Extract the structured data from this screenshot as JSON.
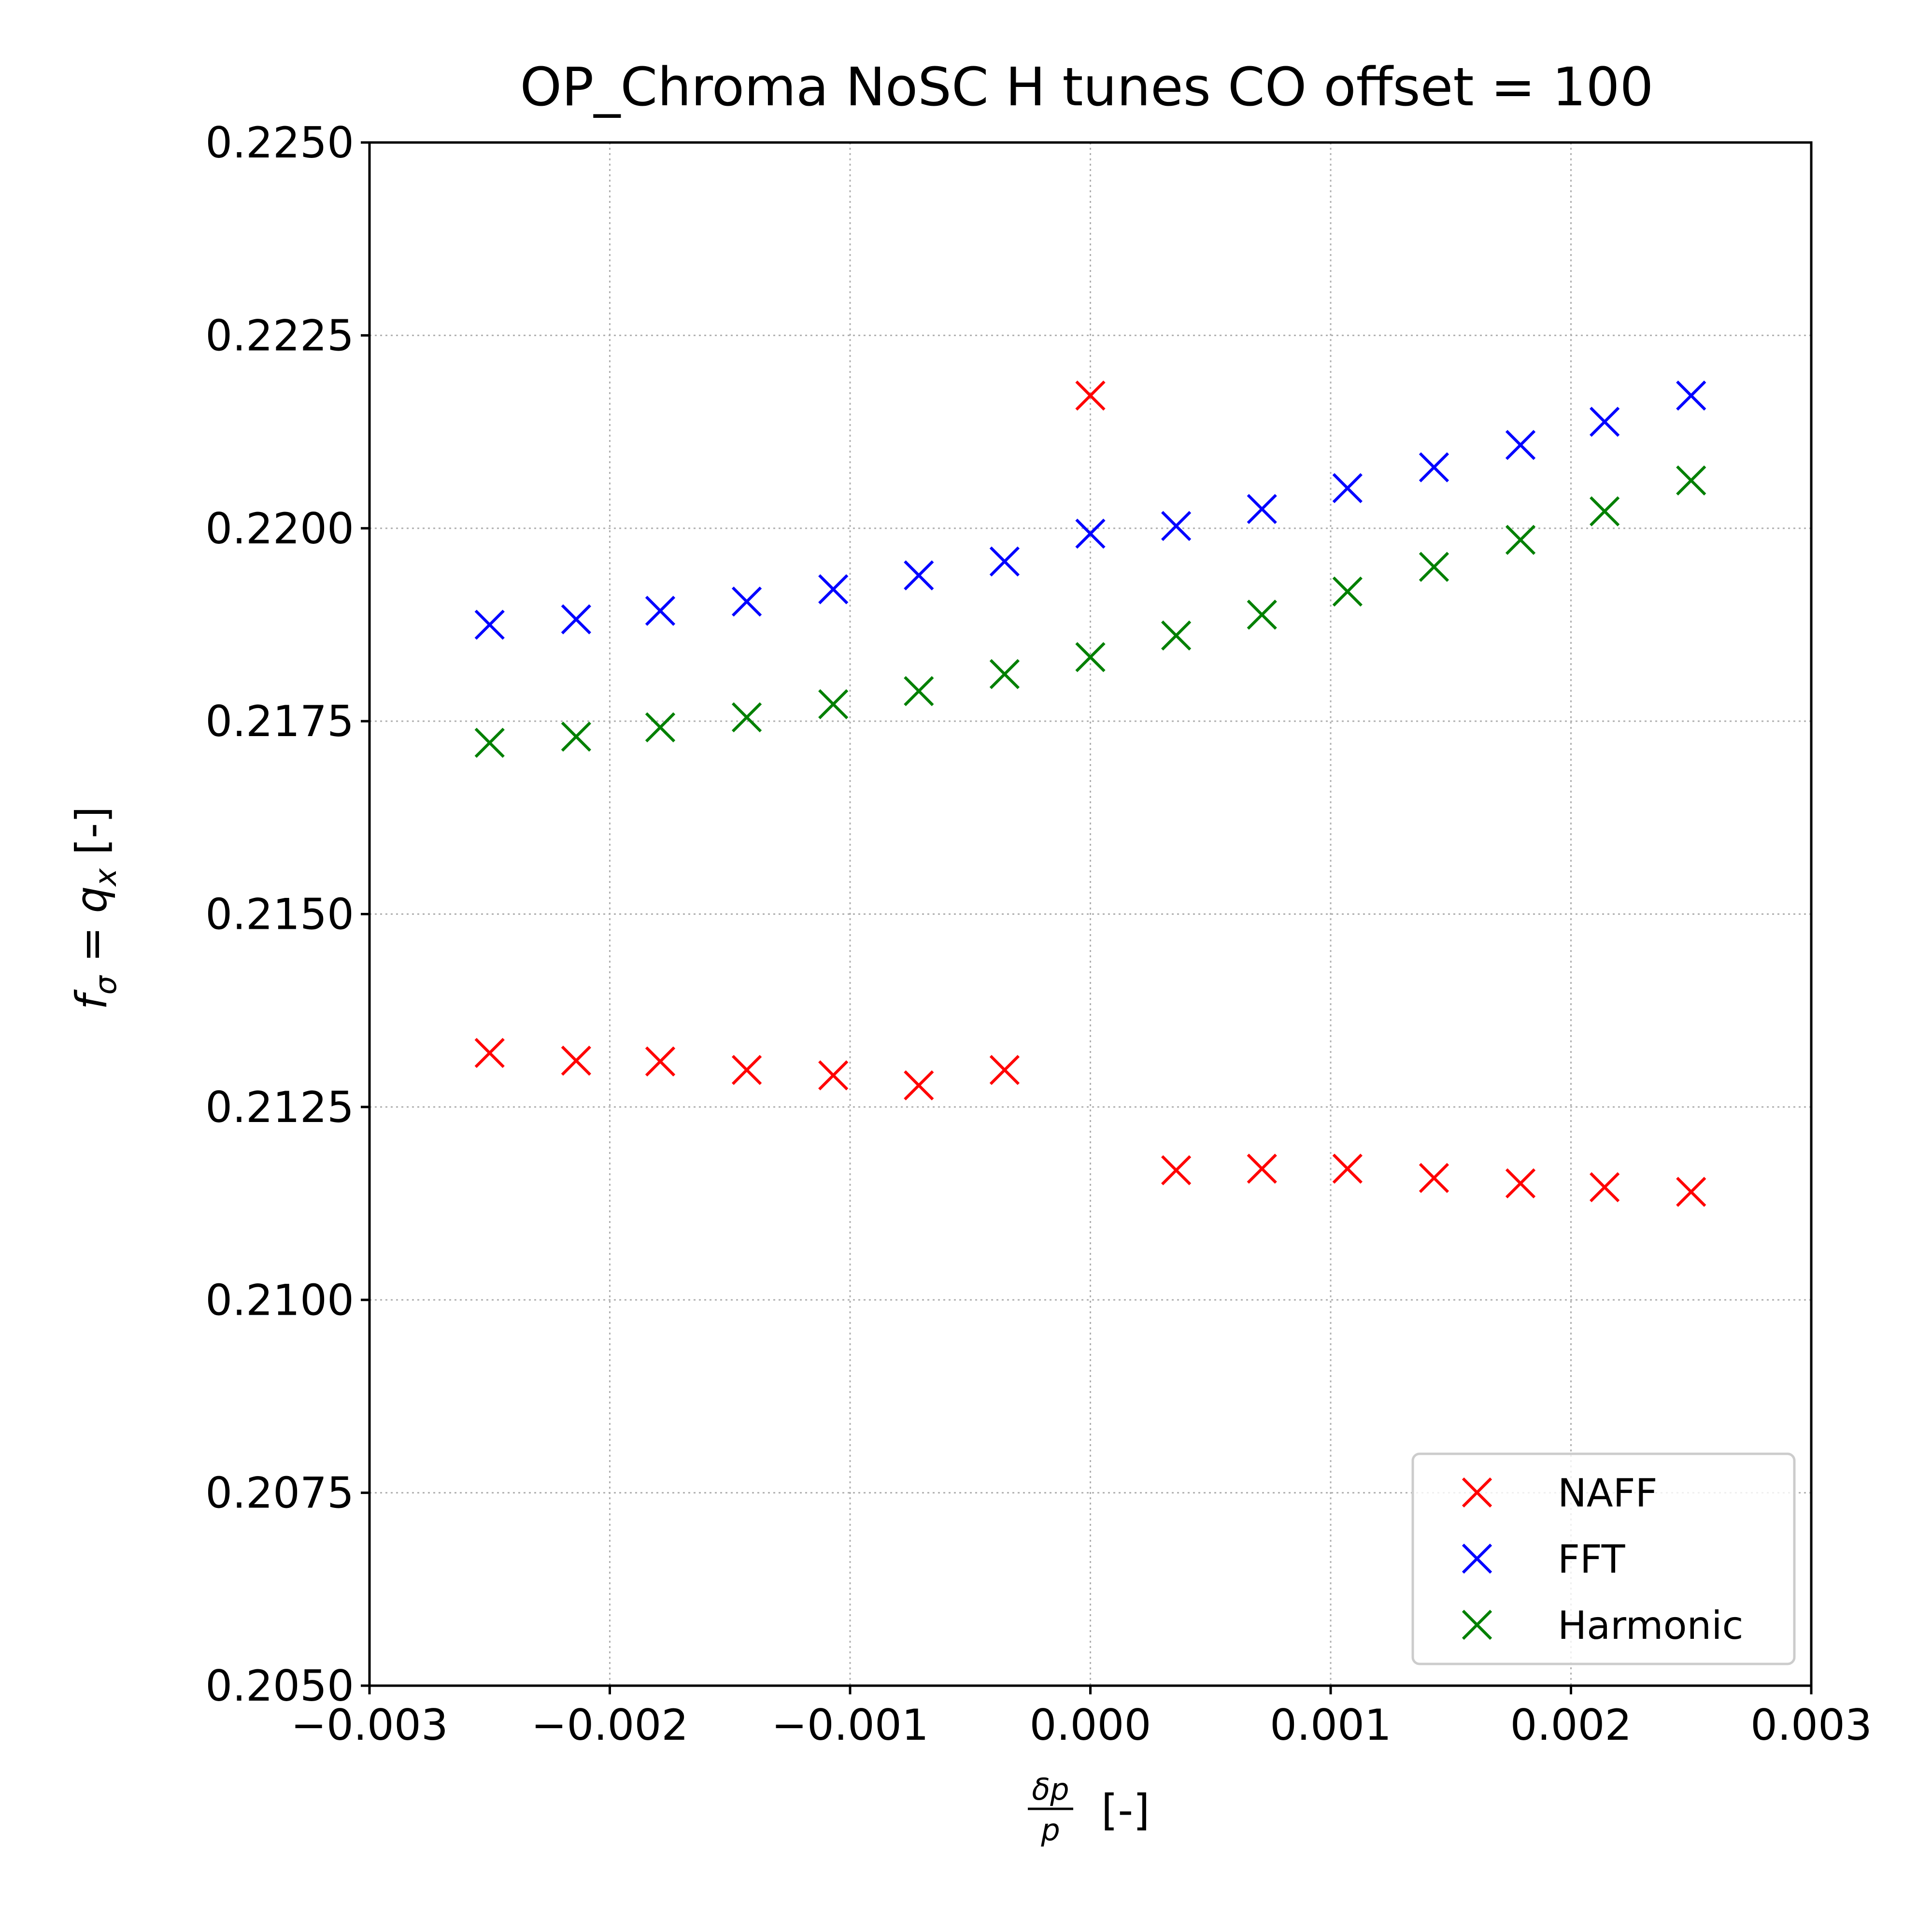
{
  "chart_data": {
    "type": "scatter",
    "title": "OP_Chroma NoSC H tunes CO offset = 100",
    "xlabel": {
      "frac_num": "δp",
      "frac_den": "p",
      "unit": "[-]"
    },
    "ylabel": {
      "f": "f",
      "sub_sigma": "σ",
      "eq": " = ",
      "q": "q",
      "sub_x": "x",
      "unit": " [-]"
    },
    "xlim": [
      -0.003,
      0.003
    ],
    "ylim": [
      0.205,
      0.225
    ],
    "x_ticks": [
      -0.003,
      -0.002,
      -0.001,
      0.0,
      0.001,
      0.002,
      0.003
    ],
    "x_tick_labels": [
      "−0.003",
      "−0.002",
      "−0.001",
      "0.000",
      "0.001",
      "0.002",
      "0.003"
    ],
    "y_ticks": [
      0.205,
      0.2075,
      0.21,
      0.2125,
      0.215,
      0.2175,
      0.22,
      0.2225,
      0.225
    ],
    "y_tick_labels": [
      "0.2050",
      "0.2075",
      "0.2100",
      "0.2125",
      "0.2150",
      "0.2175",
      "0.2200",
      "0.2225",
      "0.2250"
    ],
    "grid": true,
    "legend_position": "lower-right",
    "marker": "x",
    "x": [
      -0.0025,
      -0.00214,
      -0.00179,
      -0.00143,
      -0.00107,
      -0.000714,
      -0.000357,
      0.0,
      0.000357,
      0.000714,
      0.00107,
      0.00143,
      0.00179,
      0.00214,
      0.0025
    ],
    "series": [
      {
        "name": "NAFF",
        "color": "#ff0000",
        "values": [
          0.2132,
          0.2131,
          0.21309,
          0.21298,
          0.21291,
          0.21278,
          0.21298,
          0.22172,
          0.21168,
          0.2117,
          0.2117,
          0.21158,
          0.21151,
          0.21146,
          0.2114
        ]
      },
      {
        "name": "FFT",
        "color": "#0000ff",
        "values": [
          0.21875,
          0.21882,
          0.21893,
          0.21905,
          0.21921,
          0.21939,
          0.21957,
          0.21993,
          0.22003,
          0.22025,
          0.22052,
          0.22079,
          0.22108,
          0.22138,
          0.22172
        ]
      },
      {
        "name": "Harmonic",
        "color": "#008000",
        "values": [
          0.21722,
          0.2173,
          0.21742,
          0.21755,
          0.21772,
          0.21789,
          0.21811,
          0.21833,
          0.21861,
          0.21888,
          0.21918,
          0.2195,
          0.21985,
          0.22022,
          0.22062
        ]
      }
    ]
  }
}
